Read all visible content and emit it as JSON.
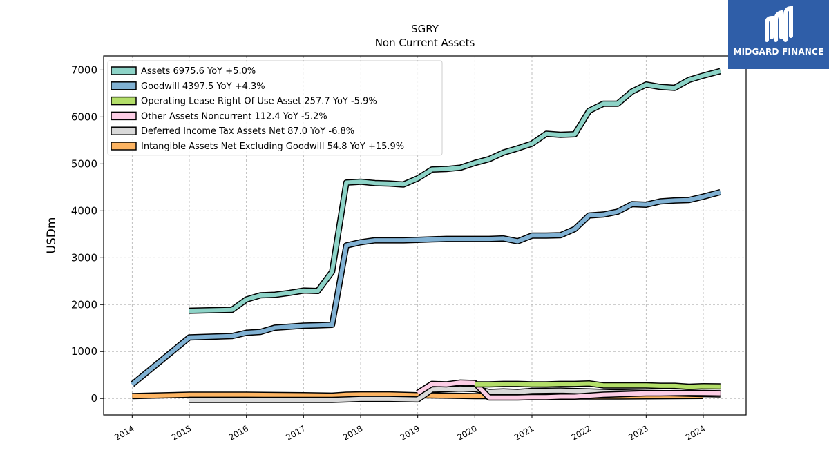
{
  "title": "SGRY",
  "subtitle": "Non Current  Assets",
  "brand": {
    "name": "MIDGARD FINANCE",
    "color": "#2f5ea8"
  },
  "chart_data": {
    "type": "line",
    "ylabel": "USDm",
    "xlim": [
      2013.5,
      2024.75
    ],
    "ylim": [
      -350,
      7300
    ],
    "x_ticks": [
      2014,
      2015,
      2016,
      2017,
      2018,
      2019,
      2020,
      2021,
      2022,
      2023,
      2024
    ],
    "y_ticks": [
      0,
      1000,
      2000,
      3000,
      4000,
      5000,
      6000,
      7000
    ],
    "grid": true,
    "legend_position": "top-left",
    "series": [
      {
        "name": "Assets",
        "legend": "Assets  6975.6 YoY +5.0%",
        "color": "#8dd3c7",
        "x": [
          2015.0,
          2015.75,
          2016.0,
          2016.25,
          2016.5,
          2016.75,
          2017.0,
          2017.25,
          2017.5,
          2017.75,
          2018.0,
          2018.25,
          2018.5,
          2018.75,
          2019.0,
          2019.25,
          2019.5,
          2019.75,
          2020.0,
          2020.25,
          2020.5,
          2020.75,
          2021.0,
          2021.25,
          2021.5,
          2021.75,
          2022.0,
          2022.25,
          2022.5,
          2022.75,
          2023.0,
          2023.25,
          2023.5,
          2023.75,
          2024.0,
          2024.3
        ],
        "y": [
          1870,
          1890,
          2110,
          2200,
          2210,
          2250,
          2300,
          2290,
          2700,
          4600,
          4620,
          4590,
          4580,
          4560,
          4690,
          4880,
          4890,
          4920,
          5020,
          5100,
          5240,
          5330,
          5430,
          5640,
          5620,
          5630,
          6130,
          6280,
          6280,
          6540,
          6690,
          6640,
          6620,
          6790,
          6880,
          6976
        ]
      },
      {
        "name": "Goodwill",
        "legend": "Goodwill  4397.5 YoY +4.3%",
        "color": "#80b1d3",
        "x": [
          2014.0,
          2015.0,
          2015.75,
          2016.0,
          2016.25,
          2016.5,
          2016.75,
          2017.0,
          2017.25,
          2017.5,
          2017.75,
          2018.0,
          2018.25,
          2018.5,
          2018.75,
          2019.0,
          2019.25,
          2019.5,
          2019.75,
          2020.0,
          2020.25,
          2020.5,
          2020.75,
          2021.0,
          2021.25,
          2021.5,
          2021.75,
          2022.0,
          2022.25,
          2022.5,
          2022.75,
          2023.0,
          2023.25,
          2023.5,
          2023.75,
          2024.0,
          2024.3
        ],
        "y": [
          300,
          1300,
          1330,
          1400,
          1420,
          1510,
          1530,
          1550,
          1560,
          1570,
          3260,
          3330,
          3370,
          3370,
          3370,
          3380,
          3390,
          3400,
          3400,
          3400,
          3400,
          3410,
          3350,
          3470,
          3470,
          3480,
          3610,
          3900,
          3920,
          3980,
          4140,
          4130,
          4200,
          4220,
          4230,
          4300,
          4398
        ]
      },
      {
        "name": "Operating Lease Right Of Use Asset",
        "legend": "Operating Lease Right Of Use Asset  257.7 YoY -5.9%",
        "color": "#b3de69",
        "x": [
          2020.0,
          2020.25,
          2020.5,
          2020.75,
          2021.0,
          2021.25,
          2021.5,
          2021.75,
          2022.0,
          2022.25,
          2022.5,
          2022.75,
          2023.0,
          2023.25,
          2023.5,
          2023.75,
          2024.0,
          2024.3
        ],
        "y": [
          300,
          300,
          310,
          310,
          300,
          300,
          310,
          310,
          320,
          280,
          280,
          280,
          280,
          270,
          270,
          250,
          260,
          258
        ]
      },
      {
        "name": "Other Assets Noncurrent",
        "legend": "Other Assets Noncurrent  112.4 YoY -5.2%",
        "color": "#fccde5",
        "x": [
          2019.0,
          2019.25,
          2019.5,
          2019.75,
          2020.0,
          2020.25,
          2020.5,
          2020.75,
          2021.0,
          2021.25,
          2021.5,
          2021.75,
          2022.0,
          2022.25,
          2022.5,
          2022.75,
          2023.0,
          2023.25,
          2023.5,
          2023.75,
          2024.0,
          2024.3
        ],
        "y": [
          120,
          310,
          300,
          340,
          330,
          20,
          20,
          20,
          30,
          30,
          40,
          40,
          60,
          80,
          90,
          100,
          110,
          110,
          115,
          120,
          118,
          112
        ]
      },
      {
        "name": "Deferred Income Tax Assets Net",
        "legend": "Deferred Income Tax Assets Net  87.0 YoY -6.8%",
        "color": "#d9d9d9",
        "x": [
          2015.0,
          2016.0,
          2017.0,
          2017.5,
          2017.75,
          2018.0,
          2018.5,
          2019.0,
          2019.25,
          2019.5,
          2019.75,
          2020.0,
          2020.25,
          2020.5,
          2020.75,
          2021.0,
          2021.5,
          2022.0,
          2022.5,
          2023.0,
          2023.5,
          2024.0,
          2024.3
        ],
        "y": [
          -30,
          -30,
          -30,
          -30,
          -20,
          -10,
          -10,
          -20,
          190,
          200,
          210,
          200,
          140,
          150,
          140,
          160,
          170,
          150,
          130,
          120,
          110,
          95,
          87
        ]
      },
      {
        "name": "Intangible Assets Net Excluding Goodwill",
        "legend": "Intangible Assets Net Excluding Goodwill  54.8 YoY +15.9%",
        "color": "#fdb462",
        "x": [
          2014.0,
          2015.0,
          2016.0,
          2017.0,
          2017.5,
          2017.75,
          2018.0,
          2018.5,
          2019.0,
          2019.5,
          2020.0,
          2020.5,
          2021.0,
          2021.5,
          2022.0,
          2022.5,
          2023.0,
          2023.5,
          2024.0
        ],
        "y": [
          50,
          80,
          80,
          70,
          60,
          80,
          85,
          85,
          70,
          60,
          50,
          50,
          45,
          45,
          45,
          45,
          47,
          50,
          55
        ]
      }
    ]
  }
}
